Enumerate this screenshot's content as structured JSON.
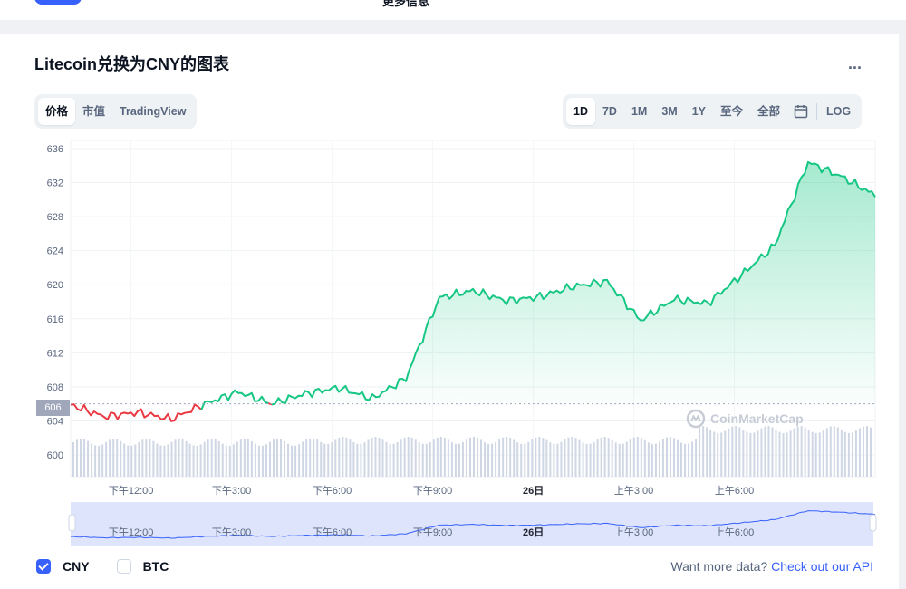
{
  "header": {
    "more_info": "更多信息"
  },
  "title": "Litecoin兑换为CNY的图表",
  "more_menu": "...",
  "view_tabs": [
    {
      "label": "价格",
      "active": true
    },
    {
      "label": "市值",
      "active": false
    },
    {
      "label": "TradingView",
      "active": false
    }
  ],
  "range_tabs": [
    {
      "label": "1D",
      "active": true
    },
    {
      "label": "7D",
      "active": false
    },
    {
      "label": "1M",
      "active": false
    },
    {
      "label": "3M",
      "active": false
    },
    {
      "label": "1Y",
      "active": false
    },
    {
      "label": "至今",
      "active": false
    },
    {
      "label": "全部",
      "active": false
    }
  ],
  "calendar_icon": "calendar-icon",
  "log_label": "LOG",
  "current_price_label": "606",
  "watermark": "CoinMarketCap",
  "legend": [
    {
      "label": "CNY",
      "checked": true
    },
    {
      "label": "BTC",
      "checked": false
    }
  ],
  "api_text": "Want more data?",
  "api_link": "Check out our API",
  "colors": {
    "up": "#16c784",
    "down": "#ea3943",
    "accent": "#3861fb",
    "volume": "#cfd6e4",
    "navigator": "#dde4fc"
  },
  "chart_data": {
    "type": "line",
    "title": "",
    "xlabel": "",
    "ylabel": "",
    "ylim": [
      600,
      636
    ],
    "yticks": [
      636,
      632,
      628,
      624,
      620,
      616,
      612,
      608,
      604,
      600
    ],
    "xticks": [
      "下午12:00",
      "下午3:00",
      "下午6:00",
      "下午9:00",
      "26日",
      "上午3:00",
      "上午6:00"
    ],
    "x_hours": [
      0,
      1,
      2,
      3,
      4,
      5,
      6,
      7,
      8,
      9,
      10,
      11,
      12,
      13,
      14,
      15,
      16,
      17,
      18,
      19,
      20,
      21,
      22,
      23,
      24
    ],
    "reference_price": 606,
    "series": [
      {
        "values": [
          605.9,
          604.5,
          605.0,
          604.2,
          606.0,
          607.4,
          606.0,
          607.2,
          607.9,
          606.6,
          609.0,
          618.5,
          619.3,
          618.1,
          618.6,
          619.8,
          620.4,
          615.8,
          618.3,
          617.8,
          621.1,
          624.6,
          634.4,
          632.7,
          630.5
        ]
      }
    ],
    "grid": true,
    "legend": "bottom-left"
  }
}
